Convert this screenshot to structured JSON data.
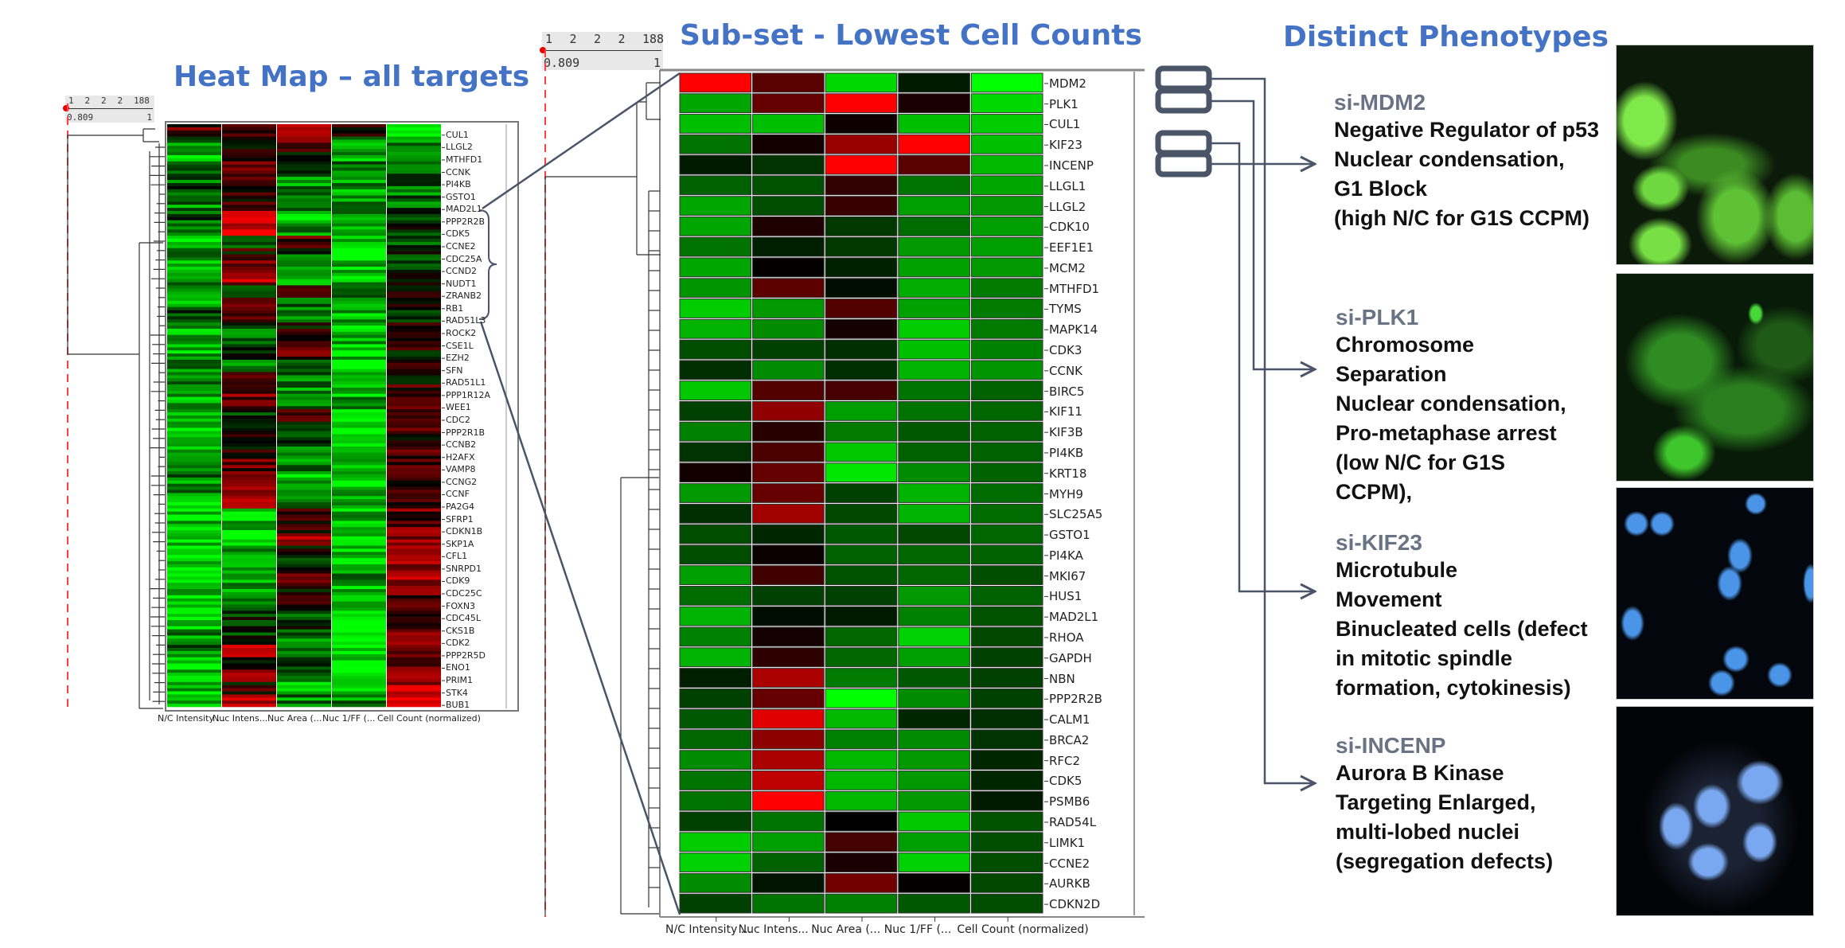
{
  "titles": {
    "overview": "Heat Map – all targets",
    "subset": "Sub-set - Lowest Cell Counts",
    "phenotypes": "Distinct Phenotypes"
  },
  "rulers": {
    "overview": {
      "ticks": [
        "1",
        "2",
        "2",
        "2",
        "188"
      ],
      "min": "0.809",
      "max": "1"
    },
    "subset": {
      "ticks": [
        "1",
        "2",
        "2",
        "2",
        "188"
      ],
      "min": "0.809",
      "max": "1"
    }
  },
  "colors": {
    "high": "#ff0000",
    "mid": "#000000",
    "low": "#00ff00",
    "title": "#4472c4",
    "connector": "#4a5568",
    "cutoff": "#ff4040"
  },
  "chart_data": [
    {
      "type": "heatmap",
      "title": "Heat Map – all targets",
      "color_scale": "green (low) – black – red (high)",
      "columns": [
        "N/C Intensity ...",
        "Nuc Intens...",
        "Nuc Area (...",
        "Nuc 1/FF (...",
        "Cell Count (normalized)"
      ],
      "rows": [
        "CUL1",
        "LLGL2",
        "MTHFD1",
        "CCNK",
        "PI4KB",
        "GSTO1",
        "MAD2L1",
        "PPP2R2B",
        "CDK5",
        "CCNE2",
        "CDC25A",
        "CCND2",
        "NUDT1",
        "ZRANB2",
        "RB1",
        "RAD51L3",
        "ROCK2",
        "CSE1L",
        "EZH2",
        "SFN",
        "RAD51L1",
        "PPP1R12A",
        "WEE1",
        "CDC2",
        "PPP2R1B",
        "CCNB2",
        "H2AFX",
        "VAMP8",
        "CCNG2",
        "CCNF",
        "PA2G4",
        "SFRP1",
        "CDKN1B",
        "SKP1A",
        "CFL1",
        "SNRPD1",
        "CDK9",
        "CDC25C",
        "FOXN3",
        "CDC45L",
        "CKS1B",
        "CDK2",
        "PPP2R5D",
        "ENO1",
        "PRIM1",
        "STK4",
        "BUB1"
      ],
      "values": [
        [
          0.3,
          0.2,
          0.6,
          0.1,
          -1
        ],
        [
          -0.5,
          -0.2,
          0.3,
          -0.6,
          -0.6
        ],
        [
          -0.7,
          0.2,
          0.1,
          -0.7,
          -0.5
        ],
        [
          -0.3,
          0.3,
          -0.2,
          -0.5,
          -0.45
        ],
        [
          -0.4,
          0.5,
          -0.6,
          -0.6,
          -0.4
        ],
        [
          -0.2,
          0.3,
          -0.4,
          -0.7,
          -0.4
        ],
        [
          -0.5,
          0.1,
          -0.3,
          -0.5,
          -0.35
        ],
        [
          -0.3,
          0.6,
          -0.9,
          -0.6,
          -0.3
        ],
        [
          -0.5,
          0.8,
          -0.6,
          -0.6,
          -0.2
        ],
        [
          -0.8,
          -0.4,
          0.4,
          -0.7,
          -0.25
        ],
        [
          -0.6,
          0.1,
          -0.3,
          -0.8,
          -0.2
        ],
        [
          -0.7,
          0.3,
          -0.4,
          -0.8,
          -0.15
        ],
        [
          -0.4,
          0.6,
          -0.5,
          -0.7,
          -0.1
        ],
        [
          -0.8,
          -0.3,
          0.2,
          -0.6,
          -0.1
        ],
        [
          -0.6,
          0.2,
          -0.4,
          -0.9,
          -0.05
        ],
        [
          -0.3,
          0.4,
          -0.6,
          -0.7,
          0.0
        ],
        [
          -0.7,
          -0.4,
          0.1,
          -0.8,
          0.0
        ],
        [
          -0.6,
          -0.3,
          0.2,
          -0.7,
          0.05
        ],
        [
          -0.7,
          -0.2,
          0.3,
          -0.8,
          0.05
        ],
        [
          -0.6,
          -0.4,
          -0.2,
          -0.9,
          0.1
        ],
        [
          -0.6,
          0.1,
          -0.4,
          -0.7,
          0.1
        ],
        [
          -0.5,
          0.5,
          -0.5,
          -0.8,
          0.15
        ],
        [
          -0.6,
          0.3,
          -0.5,
          -0.6,
          0.15
        ],
        [
          -0.7,
          -0.2,
          0.2,
          -0.7,
          0.1
        ],
        [
          -0.8,
          -0.1,
          -0.2,
          -0.9,
          0.2
        ],
        [
          -0.7,
          0.2,
          -0.3,
          -0.7,
          0.2
        ],
        [
          -0.6,
          0.1,
          -0.4,
          -0.8,
          0.25
        ],
        [
          -0.7,
          0.3,
          -0.5,
          -0.7,
          0.25
        ],
        [
          -0.5,
          0.4,
          -0.8,
          -0.8,
          0.3
        ],
        [
          -0.6,
          0.4,
          -0.5,
          -0.7,
          0.3
        ],
        [
          -0.7,
          0.7,
          -0.6,
          -0.8,
          0.3
        ],
        [
          -0.8,
          -0.8,
          0.2,
          -0.7,
          0.35
        ],
        [
          -0.8,
          -0.7,
          0.2,
          -0.8,
          0.35
        ],
        [
          -0.8,
          -0.9,
          0.5,
          -0.7,
          0.4
        ],
        [
          -0.8,
          -0.6,
          0.1,
          -0.8,
          0.45
        ],
        [
          -0.7,
          -0.5,
          -0.1,
          -0.8,
          0.55
        ],
        [
          -0.9,
          -0.8,
          0.2,
          -0.6,
          0.6
        ],
        [
          -0.7,
          -0.5,
          0.1,
          -0.8,
          0.35
        ],
        [
          -0.8,
          -0.3,
          0.4,
          -0.8,
          0.35
        ],
        [
          -0.7,
          -0.2,
          -0.3,
          -0.8,
          0.4
        ],
        [
          -0.7,
          -0.1,
          -0.2,
          -0.9,
          0.4
        ],
        [
          -0.6,
          -0.2,
          -0.5,
          -0.8,
          0.45
        ],
        [
          -0.4,
          0.6,
          -0.5,
          -0.7,
          0.5
        ],
        [
          -0.7,
          -0.2,
          -0.3,
          -0.9,
          0.5
        ],
        [
          -0.6,
          0.4,
          -0.5,
          -0.8,
          0.6
        ],
        [
          -0.7,
          0.1,
          -0.6,
          -0.9,
          0.7
        ],
        [
          -0.6,
          0.8,
          -0.5,
          -0.5,
          0.9
        ]
      ]
    },
    {
      "type": "heatmap",
      "title": "Sub-set - Lowest Cell Counts",
      "color_scale": "green (low) – black – red (high)",
      "columns": [
        "N/C Intensity ...",
        "Nuc Intens...",
        "Nuc Area (...",
        "Nuc 1/FF (...",
        "Cell Count (normalized)"
      ],
      "rows": [
        "MDM2",
        "PLK1",
        "CUL1",
        "KIF23",
        "INCENP",
        "LLGL1",
        "LLGL2",
        "CDK10",
        "EEF1E1",
        "MCM2",
        "MTHFD1",
        "TYMS",
        "MAPK14",
        "CDK3",
        "CCNK",
        "BIRC5",
        "KIF11",
        "KIF3B",
        "PI4KB",
        "KRT18",
        "MYH9",
        "SLC25A5",
        "GSTO1",
        "PI4KA",
        "MKI67",
        "HUS1",
        "MAD2L1",
        "RHOA",
        "GAPDH",
        "NBN",
        "PPP2R2B",
        "CALM1",
        "BRCA2",
        "RFC2",
        "CDK5",
        "PSMB6",
        "RAD54L",
        "LIMK1",
        "CCNE2",
        "AURKB",
        "CDKN2D"
      ],
      "values": [
        [
          1,
          0.35,
          -0.85,
          -0.1,
          -1
        ],
        [
          -0.65,
          0.4,
          1,
          0.1,
          -0.85
        ],
        [
          -0.75,
          -0.75,
          0.05,
          -0.75,
          -0.8
        ],
        [
          -0.45,
          0.07,
          0.6,
          1,
          -0.75
        ],
        [
          -0.1,
          -0.2,
          1,
          0.35,
          -0.72
        ],
        [
          -0.38,
          -0.32,
          0.2,
          -0.45,
          -0.65
        ],
        [
          -0.65,
          -0.3,
          0.22,
          -0.62,
          -0.6
        ],
        [
          -0.65,
          0.12,
          -0.22,
          -0.42,
          -0.62
        ],
        [
          -0.45,
          -0.12,
          -0.22,
          -0.6,
          -0.62
        ],
        [
          -0.65,
          0.02,
          -0.13,
          -0.63,
          -0.6
        ],
        [
          -0.58,
          0.36,
          -0.05,
          -0.68,
          -0.48
        ],
        [
          -0.8,
          -0.6,
          0.32,
          -0.63,
          -0.48
        ],
        [
          -0.7,
          -0.55,
          0.08,
          -0.8,
          -0.48
        ],
        [
          -0.3,
          -0.25,
          -0.18,
          -0.75,
          -0.5
        ],
        [
          -0.18,
          -0.55,
          -0.18,
          -0.7,
          -0.58
        ],
        [
          -0.78,
          0.32,
          0.28,
          -0.45,
          -0.38
        ],
        [
          -0.25,
          0.57,
          -0.62,
          -0.45,
          -0.4
        ],
        [
          -0.5,
          0.15,
          -0.48,
          -0.35,
          -0.38
        ],
        [
          -0.2,
          0.3,
          -0.78,
          -0.38,
          -0.38
        ],
        [
          0.07,
          0.4,
          -0.9,
          -0.55,
          -0.38
        ],
        [
          -0.6,
          0.4,
          -0.25,
          -0.7,
          -0.42
        ],
        [
          -0.18,
          0.63,
          -0.28,
          -0.7,
          -0.42
        ],
        [
          -0.3,
          -0.15,
          -0.35,
          -0.28,
          -0.4
        ],
        [
          -0.3,
          0.04,
          -0.38,
          -0.4,
          -0.38
        ],
        [
          -0.62,
          0.25,
          -0.32,
          -0.4,
          -0.3
        ],
        [
          -0.42,
          -0.25,
          -0.25,
          -0.6,
          -0.38
        ],
        [
          -0.7,
          -0.05,
          -0.1,
          -0.5,
          -0.32
        ],
        [
          -0.5,
          0.08,
          -0.4,
          -0.82,
          -0.28
        ],
        [
          -0.7,
          0.18,
          -0.4,
          -0.62,
          -0.25
        ],
        [
          -0.12,
          0.67,
          -0.48,
          -0.35,
          -0.25
        ],
        [
          -0.25,
          0.4,
          -1,
          -0.55,
          -0.25
        ],
        [
          -0.35,
          0.88,
          -0.72,
          -0.15,
          -0.18
        ],
        [
          -0.4,
          0.55,
          -0.5,
          -0.55,
          -0.2
        ],
        [
          -0.55,
          0.67,
          -0.72,
          -0.6,
          -0.15
        ],
        [
          -0.45,
          0.75,
          -0.72,
          -0.6,
          -0.15
        ],
        [
          -0.45,
          1,
          -0.72,
          -0.6,
          -0.1
        ],
        [
          -0.25,
          -0.45,
          0,
          -0.78,
          -0.32
        ],
        [
          -0.8,
          -0.62,
          0.27,
          -0.62,
          -0.3
        ],
        [
          -0.82,
          -0.38,
          0.1,
          -0.82,
          -0.3
        ],
        [
          -0.55,
          -0.08,
          0.45,
          0.02,
          -0.28
        ],
        [
          -0.25,
          -0.45,
          -0.5,
          -0.35,
          -0.3
        ]
      ]
    }
  ],
  "phenotypes": [
    {
      "name": "si-MDM2",
      "lines": [
        "Negative Regulator of p53",
        "Nuclear condensation,",
        "G1 Block",
        "(high N/C for G1S CCPM)"
      ],
      "image": "green-fluorescence"
    },
    {
      "name": "si-PLK1",
      "lines": [
        "Chromosome",
        "Separation",
        "Nuclear condensation,",
        "Pro-metaphase arrest",
        "(low N/C for G1S",
        "CCPM),"
      ],
      "image": "green-fluorescence"
    },
    {
      "name": "si-KIF23",
      "lines": [
        "Microtubule",
        "Movement",
        "Binucleated cells (defect",
        "in mitotic spindle",
        "formation, cytokinesis)"
      ],
      "image": "blue-nuclei"
    },
    {
      "name": "si-INCENP",
      "lines": [
        "Aurora B Kinase",
        "Targeting Enlarged,",
        "multi-lobed nuclei",
        "(segregation defects)"
      ],
      "image": "blue-nuclei"
    }
  ]
}
